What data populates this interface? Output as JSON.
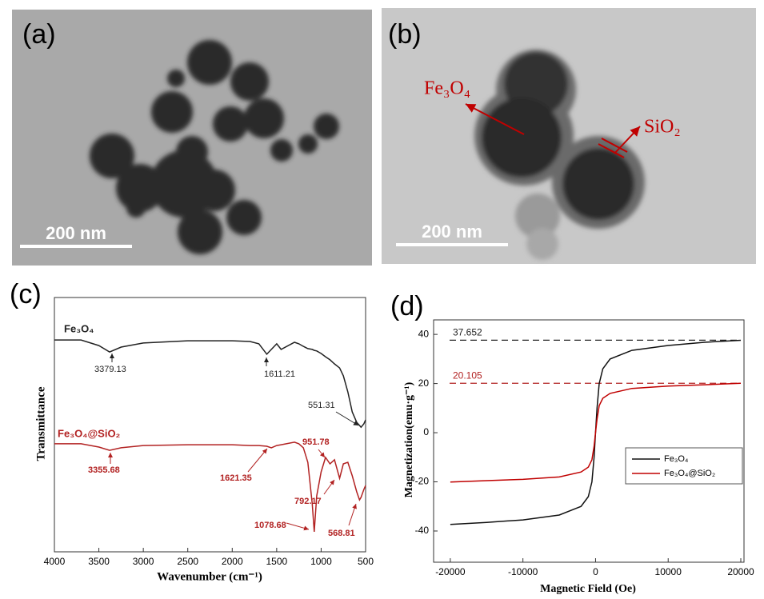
{
  "panels": [
    {
      "label": "(a)",
      "scale_bar": "200 nm"
    },
    {
      "label": "(b)",
      "scale_bar": "200 nm",
      "annotations": [
        "Fe₃O₄",
        "SiO₂"
      ]
    }
  ],
  "chart_data": [
    {
      "type": "line",
      "panel_label": "(c)",
      "xlabel": "Wavenumber (cm⁻¹)",
      "ylabel": "Transmittance",
      "x": [
        4000,
        3700,
        3500,
        3379,
        3250,
        3000,
        2500,
        2000,
        1800,
        1700,
        1611,
        1560,
        1500,
        1450,
        1300,
        1250,
        1200,
        1150,
        1100,
        1078,
        1050,
        1000,
        951,
        900,
        850,
        792,
        750,
        700,
        650,
        600,
        568,
        551,
        520,
        500
      ],
      "xlim": [
        4000,
        500
      ],
      "xticks": [
        4000,
        3500,
        3000,
        2500,
        2000,
        1500,
        1000,
        500
      ],
      "ylim": [
        0,
        100
      ],
      "series": [
        {
          "name": "Fe₃O₄",
          "color": "#222222",
          "peaks": [
            3379.13,
            1611.21,
            551.31
          ],
          "values": [
            83.3,
            83.3,
            81.1,
            78.6,
            80.5,
            82.1,
            83,
            83,
            82.7,
            81.8,
            77.7,
            79.6,
            81.8,
            79.6,
            82.4,
            81.8,
            80.8,
            79.9,
            79.6,
            79.2,
            79,
            78,
            76.7,
            75.5,
            73.9,
            72.3,
            69.2,
            62.9,
            55,
            50.9,
            49.7,
            49,
            50.3,
            51.9
          ]
        },
        {
          "name": "Fe₃O₄@SiO₂",
          "color": "#b22222",
          "peaks": [
            3355.68,
            1621.35,
            951.78,
            792.17,
            1078.68,
            568.81
          ],
          "values": [
            42.5,
            42.5,
            41.2,
            39.9,
            40.9,
            41.8,
            42.1,
            42.1,
            41.8,
            41.8,
            41.5,
            40.9,
            41.8,
            42.1,
            43.1,
            42.5,
            40.9,
            35.2,
            18.9,
            7.9,
            22,
            31.4,
            37.1,
            34.6,
            36.2,
            28.9,
            34.6,
            35.2,
            29.9,
            23.6,
            20.4,
            21.4,
            24.5,
            26.1
          ]
        }
      ]
    },
    {
      "type": "line",
      "panel_label": "(d)",
      "xlabel": "Magnetic Field (Oe)",
      "ylabel": "Magnetization(emu·g⁻¹)",
      "x": [
        -20000,
        -15000,
        -10000,
        -5000,
        -2000,
        -1000,
        -500,
        -200,
        0,
        200,
        500,
        1000,
        2000,
        5000,
        10000,
        15000,
        20000
      ],
      "xlim": [
        -22300,
        20440
      ],
      "xticks": [
        -20000,
        -10000,
        0,
        10000,
        20000
      ],
      "ylim": [
        -52.7,
        45.9
      ],
      "yticks": [
        -40,
        -20,
        0,
        20,
        40
      ],
      "reference_lines": [
        {
          "value": 37.652,
          "color": "#222222"
        },
        {
          "value": 20.105,
          "color": "#b22222"
        }
      ],
      "series": [
        {
          "name": "Fe₃O₄",
          "color": "#111111",
          "values": [
            -37.3,
            -36.5,
            -35.5,
            -33.5,
            -30,
            -26,
            -20,
            -10,
            0,
            10,
            20,
            26,
            30,
            33.5,
            35.5,
            36.8,
            37.6
          ]
        },
        {
          "name": "Fe₃O₄@SiO₂",
          "color": "#c00000",
          "values": [
            -20.1,
            -19.5,
            -19,
            -18,
            -16,
            -14,
            -11,
            -5.5,
            0,
            5.5,
            11,
            14,
            16,
            18,
            19,
            19.5,
            20.1
          ]
        }
      ]
    }
  ]
}
